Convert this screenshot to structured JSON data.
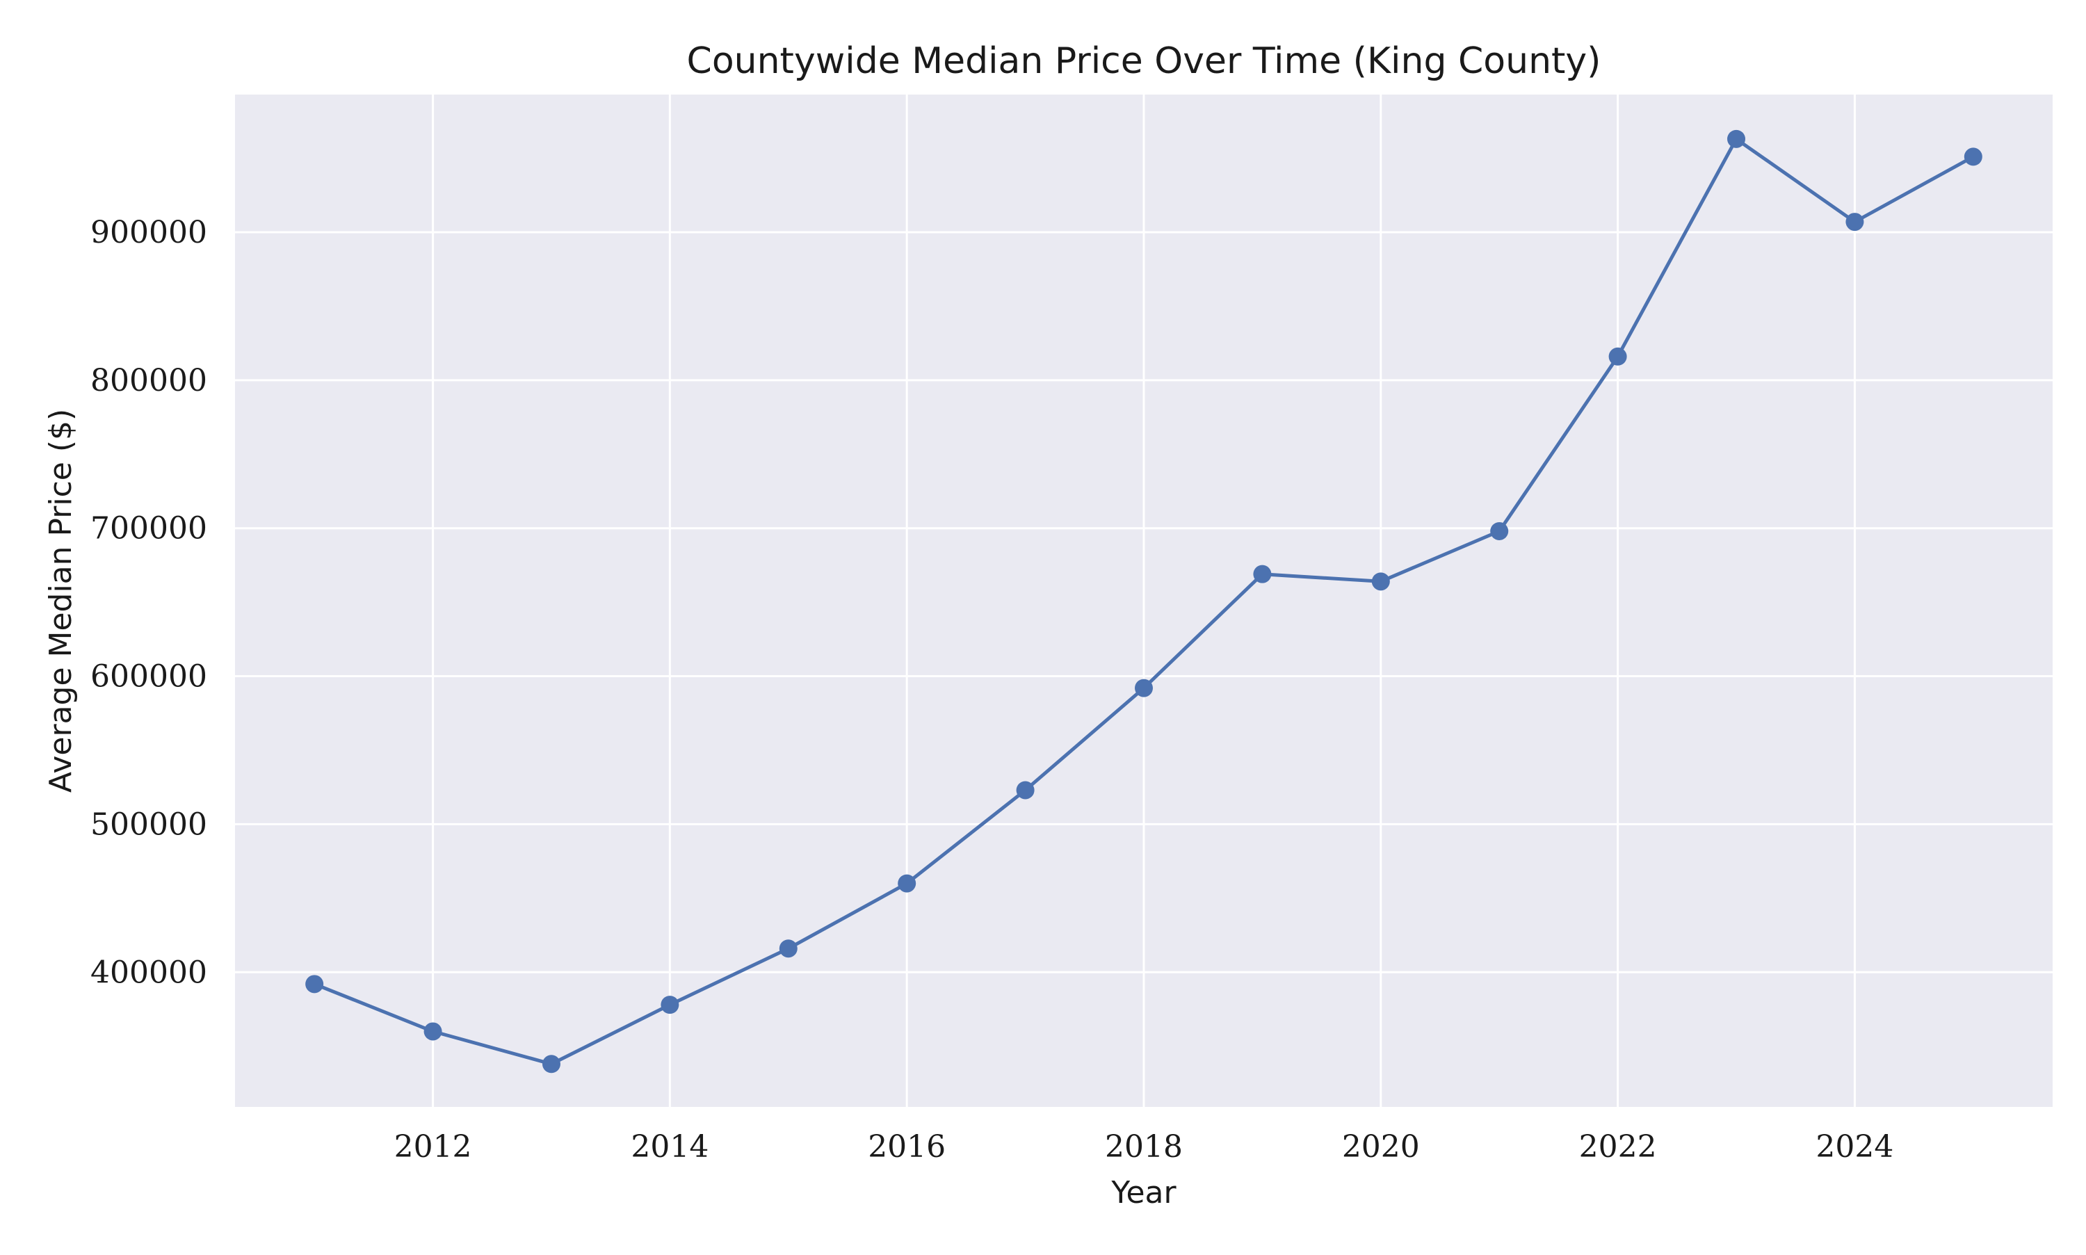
{
  "chart_data": {
    "type": "line",
    "title": "Countywide Median Price Over Time (King County)",
    "xlabel": "Year",
    "ylabel": "Average Median Price ($)",
    "xlim": [
      2010.33,
      2025.67
    ],
    "ylim": [
      309000,
      993000
    ],
    "xticks": [
      2012,
      2014,
      2016,
      2018,
      2020,
      2022,
      2024
    ],
    "xtick_labels": [
      "2012",
      "2014",
      "2016",
      "2018",
      "2020",
      "2022",
      "2024"
    ],
    "yticks": [
      400000,
      500000,
      600000,
      700000,
      800000,
      900000
    ],
    "ytick_labels": [
      "400000",
      "500000",
      "600000",
      "700000",
      "800000",
      "900000"
    ],
    "grid": true,
    "colors": {
      "background": "#eaeaf2",
      "grid": "#ffffff",
      "line": "#4c72b0"
    },
    "series": [
      {
        "name": "Average Median Price",
        "x": [
          2011,
          2012,
          2013,
          2014,
          2015,
          2016,
          2017,
          2018,
          2019,
          2020,
          2021,
          2022,
          2023,
          2024,
          2025
        ],
        "y": [
          392000,
          360000,
          338000,
          378000,
          416000,
          460000,
          523000,
          592000,
          669000,
          664000,
          698000,
          816000,
          963000,
          907000,
          951000
        ]
      }
    ]
  }
}
